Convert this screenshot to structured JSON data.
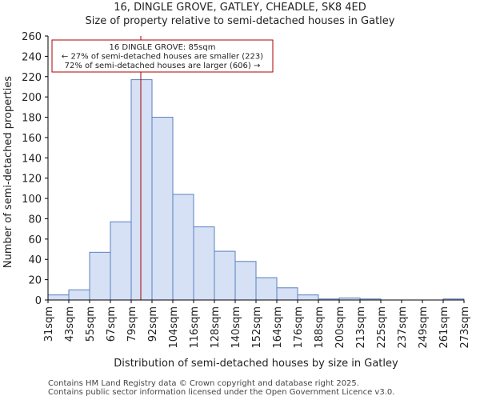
{
  "title_line1": "16, DINGLE GROVE, GATLEY, CHEADLE, SK8 4ED",
  "title_line2": "Size of property relative to semi-detached houses in Gatley",
  "footer_line1": "Contains HM Land Registry data © Crown copyright and database right 2025.",
  "footer_line2": "Contains public sector information licensed under the Open Government Licence v3.0.",
  "colors": {
    "bar_fill": "#d6e1f5",
    "bar_stroke": "#5a7fc0",
    "marker_line": "#aa0000",
    "annotation_border": "#aa0000",
    "axis": "#000000"
  },
  "chart_data": {
    "type": "bar",
    "title": "Size of property relative to semi-detached houses in Gatley",
    "xlabel": "Distribution of semi-detached houses by size in Gatley",
    "ylabel": "Number of semi-detached properties",
    "bin_edges": [
      31,
      43,
      55,
      67,
      79,
      92,
      104,
      116,
      128,
      140,
      152,
      164,
      176,
      188,
      200,
      213,
      225,
      237,
      249,
      261,
      273
    ],
    "tick_labels": [
      "31sqm",
      "43sqm",
      "55sqm",
      "67sqm",
      "79sqm",
      "92sqm",
      "104sqm",
      "116sqm",
      "128sqm",
      "140sqm",
      "152sqm",
      "164sqm",
      "176sqm",
      "188sqm",
      "200sqm",
      "213sqm",
      "225sqm",
      "237sqm",
      "249sqm",
      "261sqm",
      "273sqm"
    ],
    "values": [
      5,
      10,
      47,
      77,
      217,
      180,
      104,
      72,
      48,
      38,
      22,
      12,
      5,
      1,
      2,
      1,
      0,
      0,
      0,
      1
    ],
    "ylim": [
      0,
      260
    ],
    "yticks": [
      0,
      20,
      40,
      60,
      80,
      100,
      120,
      140,
      160,
      180,
      200,
      220,
      240,
      260
    ],
    "marker_value": 85,
    "annotation": {
      "line1": "16 DINGLE GROVE: 85sqm",
      "line2": "← 27% of semi-detached houses are smaller (223)",
      "line3": "72% of semi-detached houses are larger (606) →"
    }
  }
}
